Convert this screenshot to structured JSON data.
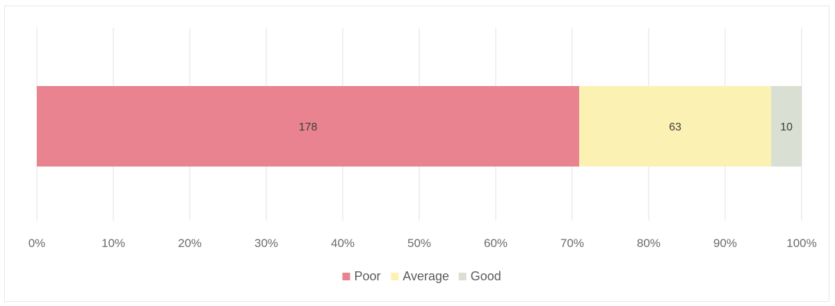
{
  "chart_data": {
    "type": "bar",
    "orientation": "horizontal",
    "stacking": "percent",
    "title": "",
    "xlabel": "",
    "ylabel": "",
    "categories": [
      ""
    ],
    "series": [
      {
        "name": "Poor",
        "values": [
          178
        ],
        "color": "#e8838f"
      },
      {
        "name": "Average",
        "values": [
          63
        ],
        "color": "#fbf1b3"
      },
      {
        "name": "Good",
        "values": [
          10
        ],
        "color": "#d9dfd2"
      }
    ],
    "xlim": [
      0,
      100
    ],
    "x_ticks": [
      "0%",
      "10%",
      "20%",
      "30%",
      "40%",
      "50%",
      "60%",
      "70%",
      "80%",
      "90%",
      "100%"
    ],
    "grid": true,
    "data_labels": true,
    "legend_position": "bottom"
  }
}
